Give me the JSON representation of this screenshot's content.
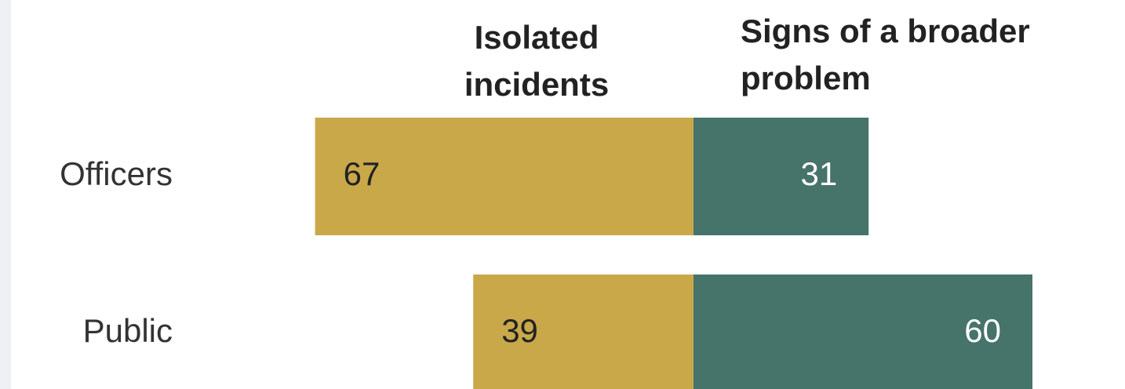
{
  "chart_data": {
    "type": "diverging_bar",
    "categories": [
      "Officers",
      "Public"
    ],
    "series": [
      {
        "name": "Isolated incidents",
        "color": "#c9a84a",
        "values": [
          67,
          39
        ]
      },
      {
        "name": "Signs of a broader problem",
        "color": "#46736a",
        "values": [
          31,
          60
        ]
      }
    ]
  }
}
